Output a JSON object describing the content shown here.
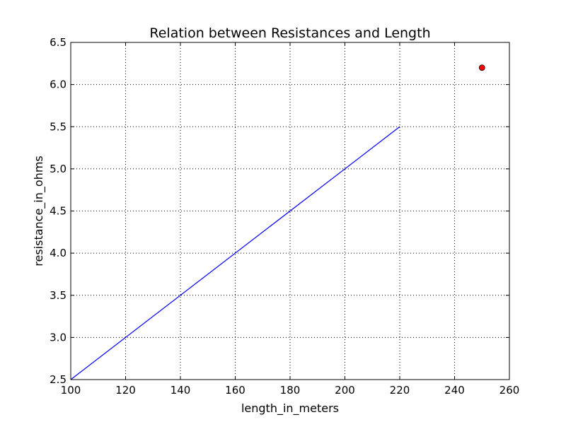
{
  "chart_data": {
    "type": "line",
    "title": "Relation between Resistances and Length",
    "xlabel": "length_in_meters",
    "ylabel": "resistance_in_ohms",
    "xlim": [
      100,
      260
    ],
    "ylim": [
      2.5,
      6.5
    ],
    "x_ticks": [
      100,
      120,
      140,
      160,
      180,
      200,
      220,
      240,
      260
    ],
    "y_ticks": [
      2.5,
      3.0,
      3.5,
      4.0,
      4.5,
      5.0,
      5.5,
      6.0,
      6.5
    ],
    "x_tick_labels": [
      "100",
      "120",
      "140",
      "160",
      "180",
      "200",
      "220",
      "240",
      "260"
    ],
    "y_tick_labels": [
      "2.5",
      "3.0",
      "3.5",
      "4.0",
      "4.5",
      "5.0",
      "5.5",
      "6.0",
      "6.5"
    ],
    "grid": true,
    "series": [
      {
        "kind": "line",
        "color": "#0000ff",
        "x": [
          100,
          220
        ],
        "y": [
          2.5,
          5.5
        ]
      },
      {
        "kind": "point",
        "color": "#ff0000",
        "x": [
          250
        ],
        "y": [
          6.2
        ]
      }
    ]
  }
}
